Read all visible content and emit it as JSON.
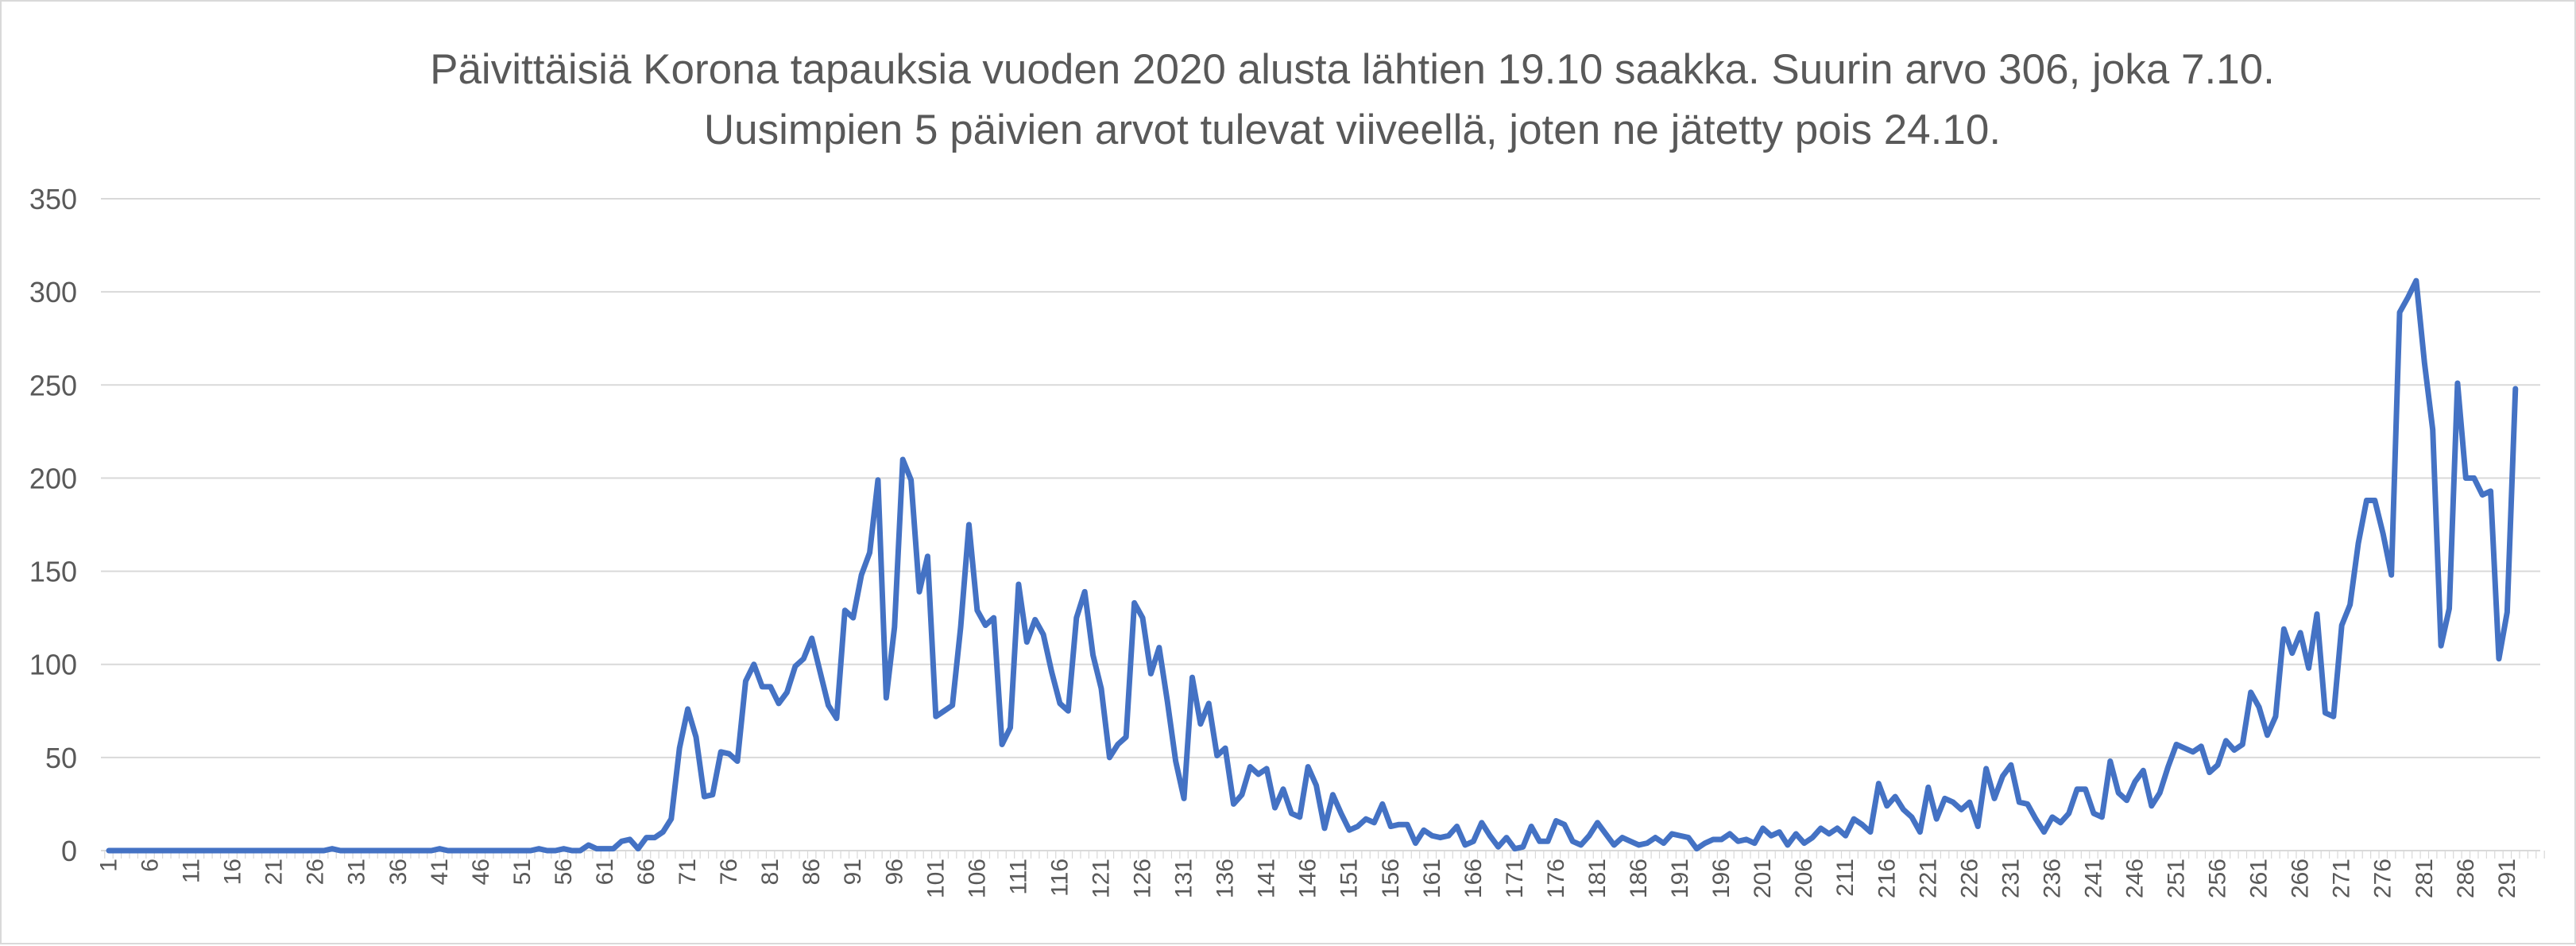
{
  "chart_data": {
    "type": "line",
    "title_lines": [
      "Päivittäisiä Korona tapauksia vuoden 2020 alusta lähtien 19.10 saakka. Suurin arvo 306, joka 7.10.",
      "Uusimpien 5 päivien arvot tulevat viiveellä, joten ne jätetty pois 24.10."
    ],
    "xlabel": "",
    "ylabel": "",
    "ylim": [
      0,
      350
    ],
    "yticks": [
      0,
      50,
      100,
      150,
      200,
      250,
      300,
      350
    ],
    "xlim": [
      1,
      295
    ],
    "xticks": [
      1,
      6,
      11,
      16,
      21,
      26,
      31,
      36,
      41,
      46,
      51,
      56,
      61,
      66,
      71,
      76,
      81,
      86,
      91,
      96,
      101,
      106,
      111,
      116,
      121,
      126,
      131,
      136,
      141,
      146,
      151,
      156,
      161,
      166,
      171,
      176,
      181,
      186,
      191,
      196,
      201,
      206,
      211,
      216,
      221,
      226,
      231,
      236,
      241,
      246,
      251,
      256,
      261,
      266,
      271,
      276,
      281,
      286,
      291
    ],
    "grid": true,
    "legend": "none",
    "series_color": "#4472c4",
    "grid_color": "#d9d9d9",
    "series": [
      {
        "values": [
          0,
          0,
          0,
          0,
          0,
          0,
          0,
          0,
          0,
          0,
          0,
          0,
          0,
          0,
          0,
          0,
          0,
          0,
          0,
          0,
          0,
          0,
          0,
          0,
          0,
          0,
          0,
          1,
          0,
          0,
          0,
          0,
          0,
          0,
          0,
          0,
          0,
          0,
          0,
          0,
          1,
          0,
          0,
          0,
          0,
          0,
          0,
          0,
          0,
          0,
          0,
          0,
          1,
          0,
          0,
          1,
          0,
          0,
          3,
          1,
          1,
          1,
          5,
          6,
          1,
          7,
          7,
          10,
          17,
          55,
          76,
          61,
          29,
          30,
          53,
          52,
          48,
          91,
          100,
          88,
          88,
          79,
          85,
          99,
          103,
          114,
          96,
          78,
          71,
          129,
          125,
          148,
          160,
          199,
          82,
          120,
          210,
          199,
          139,
          158,
          72,
          75,
          78,
          120,
          175,
          129,
          121,
          125,
          57,
          66,
          143,
          112,
          124,
          116,
          96,
          79,
          75,
          125,
          139,
          105,
          87,
          50,
          57,
          61,
          133,
          125,
          95,
          109,
          80,
          48,
          28,
          93,
          68,
          79,
          51,
          55,
          25,
          30,
          45,
          41,
          44,
          23,
          33,
          20,
          18,
          45,
          35,
          12,
          30,
          20,
          11,
          13,
          17,
          15,
          25,
          13,
          14,
          14,
          4,
          11,
          8,
          7,
          8,
          13,
          3,
          5,
          15,
          8,
          2,
          7,
          1,
          2,
          13,
          5,
          5,
          16,
          14,
          5,
          3,
          8,
          15,
          9,
          3,
          7,
          5,
          3,
          4,
          7,
          4,
          9,
          8,
          7,
          1,
          4,
          6,
          6,
          9,
          5,
          6,
          4,
          12,
          8,
          10,
          3,
          9,
          4,
          7,
          12,
          9,
          12,
          8,
          17,
          14,
          10,
          36,
          24,
          29,
          22,
          18,
          10,
          34,
          17,
          28,
          26,
          22,
          26,
          13,
          44,
          28,
          40,
          46,
          26,
          25,
          17,
          10,
          18,
          15,
          20,
          33,
          33,
          20,
          18,
          48,
          31,
          27,
          37,
          43,
          24,
          31,
          45,
          57,
          55,
          53,
          56,
          42,
          46,
          59,
          54,
          57,
          85,
          77,
          62,
          72,
          119,
          106,
          117,
          98,
          127,
          74,
          72,
          121,
          132,
          165,
          188,
          188,
          170,
          148,
          289,
          297,
          306,
          262,
          226,
          110,
          130,
          251,
          200,
          200,
          191,
          193,
          103,
          128,
          248
        ]
      }
    ]
  }
}
